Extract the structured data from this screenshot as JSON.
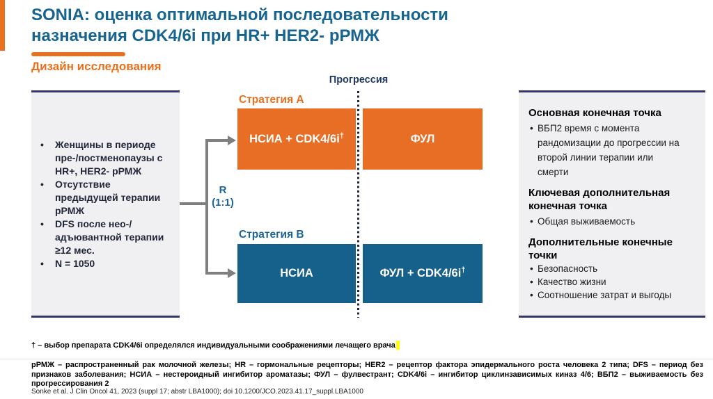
{
  "header": {
    "title_line1": "SONIA: оценка оптимальной последовательности",
    "title_line2": "назначения CDK4/6i при HR+ HER2- рРМЖ",
    "subtitle": "Дизайн исследования"
  },
  "population_box": {
    "bullets": [
      "Женщины в периоде пре-/постменопаузы с HR+, HER2- рРМЖ",
      "Отсутствие предыдущей терапии рРМЖ",
      "DFS после нео-/адъювантной терапии ≥12 мес.",
      "N = 1050"
    ]
  },
  "diagram": {
    "progression_label": "Прогрессия",
    "randomization": {
      "r": "R",
      "ratio": "(1:1)"
    },
    "strategy_a": {
      "label": "Стратегия A",
      "arm1_label": "НСИА + CDK4/6i",
      "arm1_sup": "†",
      "arm2_label": "ФУЛ"
    },
    "strategy_b": {
      "label": "Стратегия B",
      "arm1_label": "НСИА",
      "arm2_label": "ФУЛ + CDK4/6i",
      "arm2_sup": "†"
    }
  },
  "endpoints_box": {
    "sections": [
      {
        "heading": "Основная конечная точка",
        "bullets": [
          "ВБП2 время с момента рандомизации до прогрессии на второй линии терапии или смерти"
        ]
      },
      {
        "heading": "Ключевая дополнительная конечная точка",
        "bullets": [
          "Общая выживаемость"
        ]
      },
      {
        "heading": "Дополнительные конечные точки",
        "bullets": [
          "Безопасность",
          "Качество жизни",
          "Соотношение затрат и выгоды"
        ]
      }
    ]
  },
  "footnotes": {
    "dagger_note": "† – выбор препарата CDK4/6i определялся индивидуальными соображениями лечащего врача",
    "abbreviations": "рРМЖ – распространенный рак молочной железы; HR – гормональные рецепторы; HER2 – рецептор фактора эпидермального роста человека 2 типа; DFS – период без признаков заболевания; НСИА – нестероидный ингибитор ароматазы; ФУЛ – фулвестрант; CDK4/6i – ингибитор циклинзависимых киназ 4/6; ВБП2 – выживаемость без прогрессирования 2",
    "citation": "Sonke et al. J Clin Oncol 41, 2023 (suppl 17; abstr LBA1000); doi 10.1200/JCO.2023.41.17_suppl.LBA1000"
  },
  "colors": {
    "accent_orange": "#E8701F",
    "arm_orange": "#E86D25",
    "arm_blue": "#15618C",
    "title_blue": "#17648E",
    "navy_border": "#34336A",
    "navy_text": "#203864",
    "panel_gray": "#F0EFF2",
    "connector_gray": "#7F7F7F",
    "highlight_yellow": "#FFFF00"
  }
}
